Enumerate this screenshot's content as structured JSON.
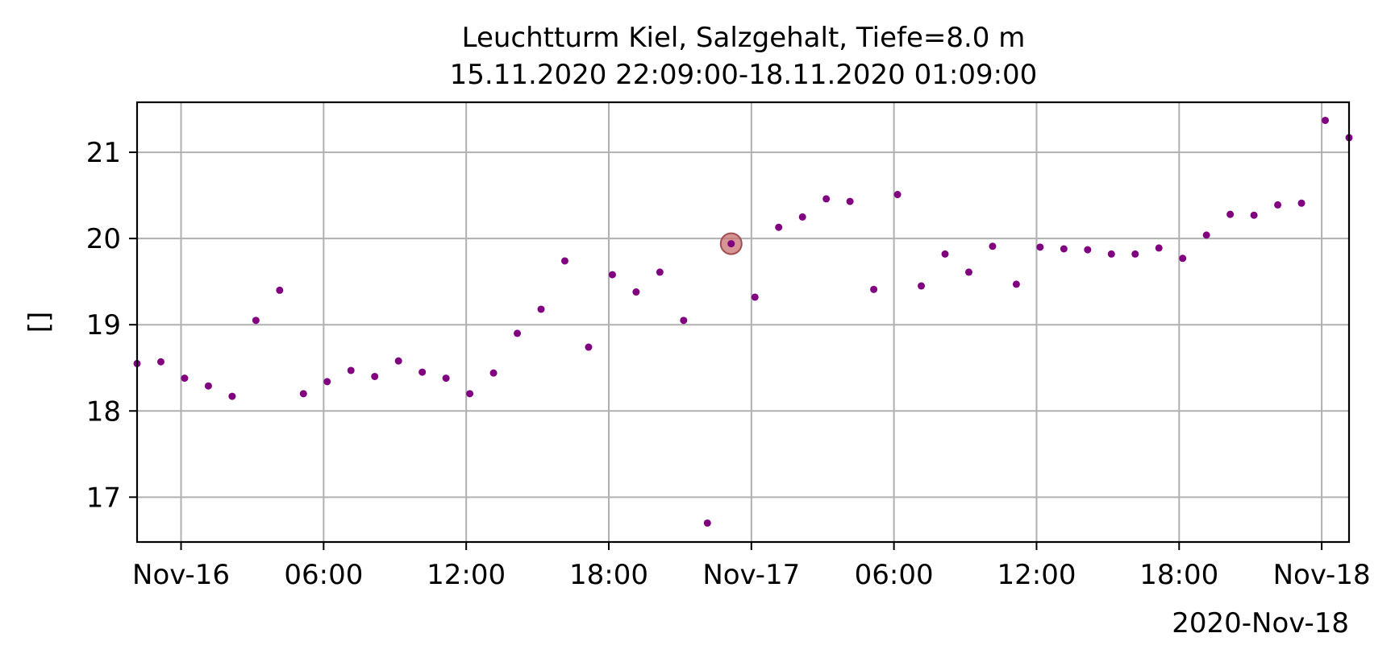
{
  "chart_data": {
    "type": "scatter",
    "title_line1": "Leuchtturm Kiel, Salzgehalt, Tiefe=8.0 m",
    "title_line2": "15.11.2020 22:09:00-18.11.2020 01:09:00",
    "ylabel": "[]",
    "xlabel": "",
    "x_offset_label": "2020-Nov-18",
    "xlim": [
      "2020-11-15 22:09",
      "2020-11-18 01:09"
    ],
    "ylim": [
      16.48,
      21.58
    ],
    "grid": true,
    "point_color": "#800080",
    "highlight_color": "#c87070",
    "x_ticks": [
      {
        "t": "2020-11-16 00:00",
        "label": "Nov-16"
      },
      {
        "t": "2020-11-16 06:00",
        "label": "06:00"
      },
      {
        "t": "2020-11-16 12:00",
        "label": "12:00"
      },
      {
        "t": "2020-11-16 18:00",
        "label": "18:00"
      },
      {
        "t": "2020-11-17 00:00",
        "label": "Nov-17"
      },
      {
        "t": "2020-11-17 06:00",
        "label": "06:00"
      },
      {
        "t": "2020-11-17 12:00",
        "label": "12:00"
      },
      {
        "t": "2020-11-17 18:00",
        "label": "18:00"
      },
      {
        "t": "2020-11-18 00:00",
        "label": "Nov-18"
      }
    ],
    "y_ticks": [
      {
        "v": 17,
        "label": "17"
      },
      {
        "v": 18,
        "label": "18"
      },
      {
        "v": 19,
        "label": "19"
      },
      {
        "v": 20,
        "label": "20"
      },
      {
        "v": 21,
        "label": "21"
      }
    ],
    "points": [
      {
        "t": "2020-11-15 22:09",
        "y": 18.55
      },
      {
        "t": "2020-11-15 23:09",
        "y": 18.57
      },
      {
        "t": "2020-11-16 00:09",
        "y": 18.38
      },
      {
        "t": "2020-11-16 01:09",
        "y": 18.29
      },
      {
        "t": "2020-11-16 02:09",
        "y": 18.17
      },
      {
        "t": "2020-11-16 03:09",
        "y": 19.05
      },
      {
        "t": "2020-11-16 04:09",
        "y": 19.4
      },
      {
        "t": "2020-11-16 05:09",
        "y": 18.2
      },
      {
        "t": "2020-11-16 06:09",
        "y": 18.34
      },
      {
        "t": "2020-11-16 07:09",
        "y": 18.47
      },
      {
        "t": "2020-11-16 08:09",
        "y": 18.4
      },
      {
        "t": "2020-11-16 09:09",
        "y": 18.58
      },
      {
        "t": "2020-11-16 10:09",
        "y": 18.45
      },
      {
        "t": "2020-11-16 11:09",
        "y": 18.38
      },
      {
        "t": "2020-11-16 12:09",
        "y": 18.2
      },
      {
        "t": "2020-11-16 13:09",
        "y": 18.44
      },
      {
        "t": "2020-11-16 14:09",
        "y": 18.9
      },
      {
        "t": "2020-11-16 15:09",
        "y": 19.18
      },
      {
        "t": "2020-11-16 16:09",
        "y": 19.74
      },
      {
        "t": "2020-11-16 17:09",
        "y": 18.74
      },
      {
        "t": "2020-11-16 18:09",
        "y": 19.58
      },
      {
        "t": "2020-11-16 19:09",
        "y": 19.38
      },
      {
        "t": "2020-11-16 20:09",
        "y": 19.61
      },
      {
        "t": "2020-11-16 21:09",
        "y": 19.05
      },
      {
        "t": "2020-11-16 22:09",
        "y": 16.7
      },
      {
        "t": "2020-11-16 23:09",
        "y": 19.94,
        "highlight": true
      },
      {
        "t": "2020-11-17 00:09",
        "y": 19.32
      },
      {
        "t": "2020-11-17 01:09",
        "y": 20.13
      },
      {
        "t": "2020-11-17 02:09",
        "y": 20.25
      },
      {
        "t": "2020-11-17 03:09",
        "y": 20.46
      },
      {
        "t": "2020-11-17 04:09",
        "y": 20.43
      },
      {
        "t": "2020-11-17 05:09",
        "y": 19.41
      },
      {
        "t": "2020-11-17 06:09",
        "y": 20.51
      },
      {
        "t": "2020-11-17 07:09",
        "y": 19.45
      },
      {
        "t": "2020-11-17 08:09",
        "y": 19.82
      },
      {
        "t": "2020-11-17 09:09",
        "y": 19.61
      },
      {
        "t": "2020-11-17 10:09",
        "y": 19.91
      },
      {
        "t": "2020-11-17 11:09",
        "y": 19.47
      },
      {
        "t": "2020-11-17 12:09",
        "y": 19.9
      },
      {
        "t": "2020-11-17 13:09",
        "y": 19.88
      },
      {
        "t": "2020-11-17 14:09",
        "y": 19.87
      },
      {
        "t": "2020-11-17 15:09",
        "y": 19.82
      },
      {
        "t": "2020-11-17 16:09",
        "y": 19.82
      },
      {
        "t": "2020-11-17 17:09",
        "y": 19.89
      },
      {
        "t": "2020-11-17 18:09",
        "y": 19.77
      },
      {
        "t": "2020-11-17 19:09",
        "y": 20.04
      },
      {
        "t": "2020-11-17 20:09",
        "y": 20.28
      },
      {
        "t": "2020-11-17 21:09",
        "y": 20.27
      },
      {
        "t": "2020-11-17 22:09",
        "y": 20.39
      },
      {
        "t": "2020-11-17 23:09",
        "y": 20.41
      },
      {
        "t": "2020-11-18 00:09",
        "y": 21.37
      },
      {
        "t": "2020-11-18 01:09",
        "y": 21.17
      }
    ]
  }
}
